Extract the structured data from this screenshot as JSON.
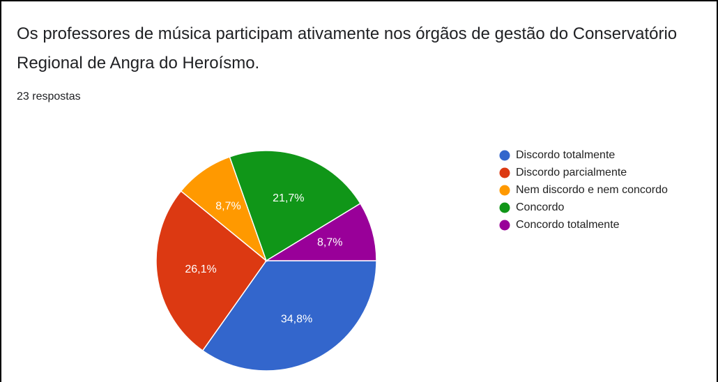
{
  "chart_data": {
    "type": "pie",
    "title": "Os professores de música participam ativamente nos órgãos de gestão do Conservatório Regional de Angra do Heroísmo.",
    "subtitle": "23 respostas",
    "categories": [
      "Discordo totalmente",
      "Discordo parcialmente",
      "Nem discordo e nem concordo",
      "Concordo",
      "Concordo totalmente"
    ],
    "values": [
      34.8,
      26.1,
      8.7,
      21.7,
      8.7
    ],
    "value_labels": [
      "34,8%",
      "26,1%",
      "8,7%",
      "21,7%",
      "8,7%"
    ],
    "colors": [
      "#3366cc",
      "#dc3912",
      "#ff9900",
      "#109618",
      "#990099"
    ],
    "legend": "right"
  }
}
